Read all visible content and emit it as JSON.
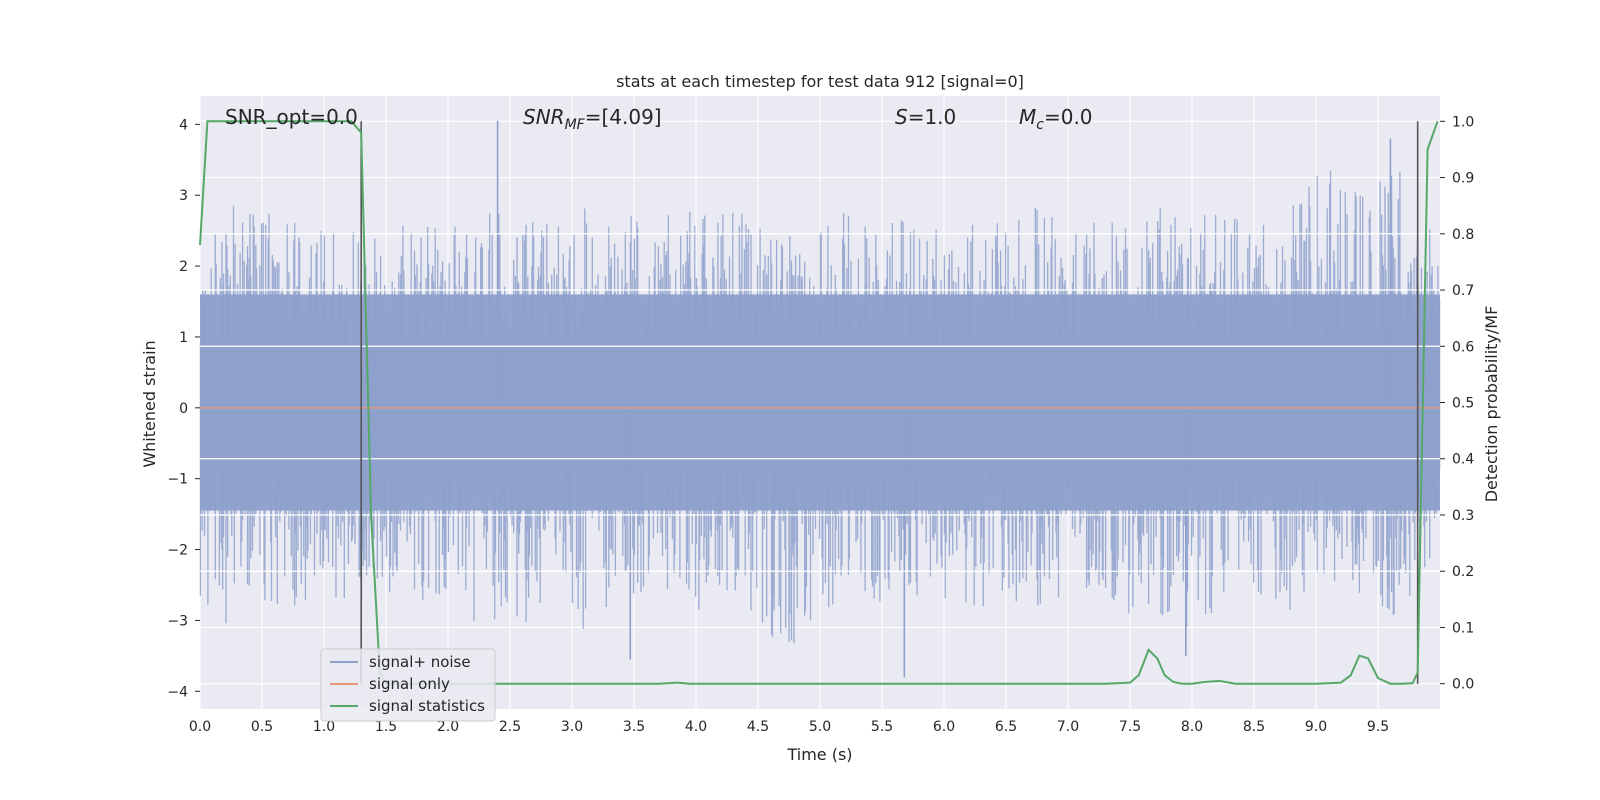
{
  "chart_data": {
    "type": "line",
    "title": "stats at each timestep for test data 912 [signal=0]",
    "xlabel": "Time (s)",
    "ylabel": "Whitened strain",
    "y2label": "Detection probability/MF",
    "xlim": [
      0.0,
      10.0
    ],
    "ylim": [
      -4.25,
      4.4
    ],
    "y2lim": [
      -0.045,
      1.045
    ],
    "x_ticks": [
      "0.0",
      "0.5",
      "1.0",
      "1.5",
      "2.0",
      "2.5",
      "3.0",
      "3.5",
      "4.0",
      "4.5",
      "5.0",
      "5.5",
      "6.0",
      "6.5",
      "7.0",
      "7.5",
      "8.0",
      "8.5",
      "9.0",
      "9.5"
    ],
    "y_ticks": [
      "4",
      "3",
      "2",
      "1",
      "0",
      "−1",
      "−2",
      "−3",
      "−4"
    ],
    "y2_ticks": [
      "1.0",
      "0.9",
      "0.8",
      "0.7",
      "0.6",
      "0.5",
      "0.4",
      "0.3",
      "0.2",
      "0.1",
      "0.0"
    ],
    "grid": true,
    "legend_position": "lower-left",
    "annotations": [
      {
        "name": "snr-opt",
        "text": "SNR_opt=0.0"
      },
      {
        "name": "snr-mf",
        "text": "SNR",
        "sub": "MF",
        "rest": "=[4.09]"
      },
      {
        "name": "s-value",
        "text": "S",
        "rest": "=1.0"
      },
      {
        "name": "mc-value",
        "text": "M",
        "sub": "c",
        "rest": "=0.0"
      }
    ],
    "series": [
      {
        "name": "signal+ noise",
        "color": "#8da0cb",
        "envelope_upper": [
          1.7,
          3.1,
          2.8,
          2.9,
          2.6,
          2.5,
          2.7,
          2.6,
          2.8,
          2.6,
          2.7,
          2.5,
          2.8,
          2.7,
          2.7,
          3.1,
          2.8,
          2.5,
          2.8,
          2.9,
          2.9,
          2.9,
          2.8,
          2.6,
          2.6,
          2.7,
          2.9,
          2.7,
          2.6,
          2.8,
          2.6,
          2.5,
          2.7,
          2.7,
          2.9,
          2.8,
          2.6,
          2.8,
          2.6,
          3.0,
          2.7,
          2.8,
          2.7,
          2.8,
          2.6,
          3.0,
          3.6,
          3.1,
          3.1,
          3.3,
          3.4,
          2.0
        ],
        "envelope_lower": [
          -2.8,
          -3.3,
          -2.7,
          -3.1,
          -2.9,
          -2.8,
          -3.1,
          -2.7,
          -2.6,
          -2.7,
          -2.9,
          -3.0,
          -3.1,
          -3.2,
          -3.0,
          -3.2,
          -3.6,
          -2.7,
          -2.7,
          -2.6,
          -2.8,
          -2.9,
          -2.8,
          -3.0,
          -3.8,
          -3.1,
          -2.8,
          -2.5,
          -2.8,
          -2.7,
          -2.8,
          -2.7,
          -2.9,
          -2.6,
          -2.9,
          -2.7,
          -2.8,
          -2.8,
          -2.9,
          -3.5,
          -3.0,
          -3.2,
          -2.8,
          -2.9,
          -2.9,
          -3.0,
          -3.0,
          -2.8,
          -2.6,
          -3.0,
          -2.6,
          -2.2
        ],
        "spikes": [
          {
            "x": 2.4,
            "y": 4.05
          },
          {
            "x": 5.68,
            "y": -3.8
          },
          {
            "x": 3.47,
            "y": -3.55
          },
          {
            "x": 7.95,
            "y": -3.5
          },
          {
            "x": 9.6,
            "y": 3.8
          }
        ]
      },
      {
        "name": "signal only",
        "color": "#e5987a",
        "constant": 0.0
      },
      {
        "name": "signal statistics",
        "color": "#55a868",
        "x": [
          0.0,
          0.06,
          0.15,
          0.3,
          0.6,
          1.0,
          1.22,
          1.3,
          1.38,
          1.45,
          1.5,
          2.0,
          3.0,
          3.7,
          3.85,
          3.95,
          4.5,
          5.5,
          6.5,
          7.3,
          7.5,
          7.57,
          7.65,
          7.72,
          7.78,
          7.85,
          7.92,
          8.0,
          8.1,
          8.22,
          8.35,
          8.5,
          9.0,
          9.2,
          9.28,
          9.35,
          9.42,
          9.5,
          9.6,
          9.7,
          9.78,
          9.82,
          9.9,
          9.98
        ],
        "y": [
          0.78,
          1.0,
          1.0,
          1.0,
          1.0,
          1.0,
          1.0,
          0.98,
          0.3,
          0.02,
          0.0,
          0.0,
          0.0,
          0.0,
          0.002,
          0.0,
          0.0,
          0.0,
          0.0,
          0.0,
          0.002,
          0.015,
          0.06,
          0.045,
          0.015,
          0.003,
          0.0,
          0.0,
          0.003,
          0.005,
          0.0,
          0.0,
          0.0,
          0.002,
          0.015,
          0.05,
          0.045,
          0.01,
          0.0,
          0.0,
          0.001,
          0.02,
          0.95,
          1.0
        ]
      }
    ],
    "markers": [
      {
        "name": "mf-marker-left",
        "x": 1.3,
        "color": "#555555"
      },
      {
        "name": "mf-marker-right",
        "x": 9.82,
        "color": "#555555"
      }
    ]
  }
}
